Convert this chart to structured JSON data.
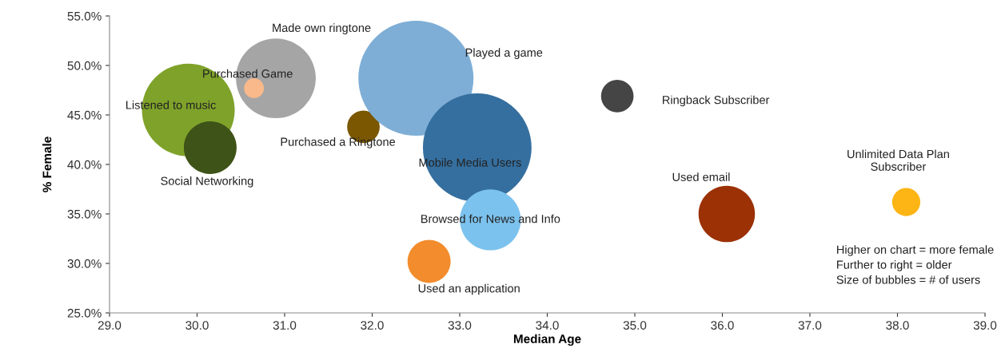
{
  "chart_data": {
    "type": "bubble",
    "xlabel": "Median Age",
    "ylabel": "% Female",
    "xlim": [
      29,
      39
    ],
    "ylim": [
      25,
      55
    ],
    "xticks": [
      {
        "value": 29,
        "label": "29.0"
      },
      {
        "value": 30,
        "label": "30.0"
      },
      {
        "value": 31,
        "label": "31.0"
      },
      {
        "value": 32,
        "label": "32.0"
      },
      {
        "value": 33,
        "label": "33.0"
      },
      {
        "value": 34,
        "label": "34.0"
      },
      {
        "value": 35,
        "label": "35.0"
      },
      {
        "value": 36,
        "label": "36.0"
      },
      {
        "value": 37,
        "label": "37.0"
      },
      {
        "value": 38,
        "label": "38.0"
      },
      {
        "value": 39,
        "label": "39.0"
      }
    ],
    "yticks": [
      {
        "value": 25,
        "label": "25.0%"
      },
      {
        "value": 30,
        "label": "30.0%"
      },
      {
        "value": 35,
        "label": "35.0%"
      },
      {
        "value": 40,
        "label": "40.0%"
      },
      {
        "value": 45,
        "label": "45.0%"
      },
      {
        "value": 50,
        "label": "50.0%"
      },
      {
        "value": 55,
        "label": "55.0%"
      }
    ],
    "grid": false,
    "legend": false,
    "marker": "circle",
    "series": [
      {
        "name": "Listened to music",
        "color": "#7fa32a",
        "x": [
          29.9
        ],
        "values": [
          45.5
        ],
        "sizes": [
          0.65
        ]
      },
      {
        "name": "Social Networking",
        "color": "#3e5317",
        "x": [
          30.15
        ],
        "values": [
          41.7
        ],
        "sizes": [
          0.21
        ]
      },
      {
        "name": "Made own ringtone",
        "color": "#a5a5a5",
        "x": [
          30.9
        ],
        "values": [
          48.7
        ],
        "sizes": [
          0.48
        ]
      },
      {
        "name": "Purchased Game",
        "color": "#f9b98a",
        "x": [
          30.65
        ],
        "values": [
          47.7
        ],
        "sizes": [
          0.03
        ]
      },
      {
        "name": "Purchased a Ringtone",
        "color": "#7a5700",
        "x": [
          31.9
        ],
        "values": [
          43.8
        ],
        "sizes": [
          0.08
        ]
      },
      {
        "name": "Played a game",
        "color": "#7eaed6",
        "x": [
          32.5
        ],
        "values": [
          48.7
        ],
        "sizes": [
          1
        ]
      },
      {
        "name": "Mobile Media Users",
        "color": "#356f9f",
        "x": [
          33.2
        ],
        "values": [
          41.7
        ],
        "sizes": [
          0.89
        ]
      },
      {
        "name": "Browsed for News and Info",
        "color": "#7cc2ee",
        "x": [
          33.35
        ],
        "values": [
          34.4
        ],
        "sizes": [
          0.28
        ]
      },
      {
        "name": "Used an application",
        "color": "#f28c2c",
        "x": [
          32.65
        ],
        "values": [
          30.2
        ],
        "sizes": [
          0.14
        ]
      },
      {
        "name": "Ringback Subscriber",
        "color": "#454545",
        "x": [
          34.8
        ],
        "values": [
          46.9
        ],
        "sizes": [
          0.08
        ]
      },
      {
        "name": "Used email",
        "color": "#9b3105",
        "x": [
          36.05
        ],
        "values": [
          35.0
        ],
        "sizes": [
          0.24
        ]
      },
      {
        "name": "Unlimited Data Plan\nSubscriber",
        "color": "#fdb515",
        "x": [
          38.1
        ],
        "values": [
          36.2
        ],
        "sizes": [
          0.06
        ]
      }
    ],
    "annotations": [
      "Higher on chart = more female\nFurther to right = older\nSize of bubbles = # of users"
    ]
  }
}
